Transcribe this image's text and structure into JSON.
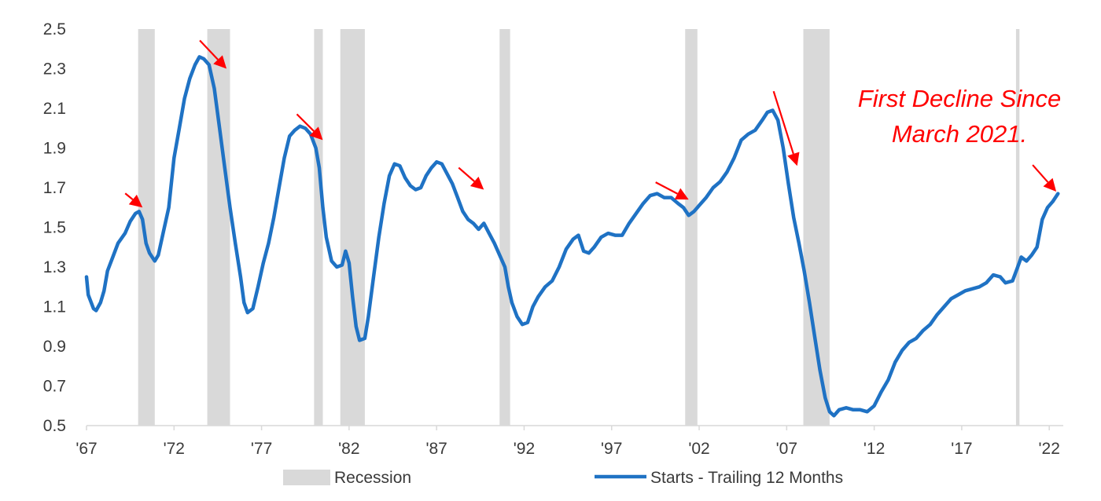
{
  "chart_data": {
    "type": "line",
    "title": "",
    "xlabel": "",
    "ylabel": "",
    "xlim": [
      1967,
      2022.8
    ],
    "ylim": [
      0.5,
      2.5
    ],
    "grid": false,
    "legend_position": "bottom",
    "x_tick_values": [
      1967,
      1972,
      1977,
      1982,
      1987,
      1992,
      1997,
      2002,
      2007,
      2012,
      2017,
      2022
    ],
    "x_tick_labels": [
      "'67",
      "'72",
      "'77",
      "'82",
      "'87",
      "'92",
      "'97",
      "'02",
      "'07",
      "'12",
      "'17",
      "'22"
    ],
    "y_tick_values": [
      0.5,
      0.7,
      0.9,
      1.1,
      1.3,
      1.5,
      1.7,
      1.9,
      2.1,
      2.3,
      2.5
    ],
    "y_tick_labels": [
      "0.5",
      "0.7",
      "0.9",
      "1.1",
      "1.3",
      "1.5",
      "1.7",
      "1.9",
      "2.1",
      "2.3",
      "2.5"
    ],
    "recessions": [
      {
        "start": 1969.95,
        "end": 1970.9
      },
      {
        "start": 1973.9,
        "end": 1975.2
      },
      {
        "start": 1980.0,
        "end": 1980.5
      },
      {
        "start": 1981.5,
        "end": 1982.9
      },
      {
        "start": 1990.6,
        "end": 1991.2
      },
      {
        "start": 2001.2,
        "end": 2001.9
      },
      {
        "start": 2007.95,
        "end": 2009.45
      },
      {
        "start": 2020.1,
        "end": 2020.3
      }
    ],
    "series": [
      {
        "name": "Starts - Trailing 12 Months",
        "color": "#1f72c4",
        "points": [
          [
            1967.0,
            1.25
          ],
          [
            1967.1,
            1.16
          ],
          [
            1967.4,
            1.09
          ],
          [
            1967.55,
            1.08
          ],
          [
            1967.8,
            1.12
          ],
          [
            1968.0,
            1.18
          ],
          [
            1968.2,
            1.28
          ],
          [
            1968.5,
            1.35
          ],
          [
            1968.8,
            1.42
          ],
          [
            1969.2,
            1.47
          ],
          [
            1969.5,
            1.53
          ],
          [
            1969.8,
            1.57
          ],
          [
            1970.0,
            1.58
          ],
          [
            1970.2,
            1.54
          ],
          [
            1970.4,
            1.42
          ],
          [
            1970.6,
            1.37
          ],
          [
            1970.9,
            1.33
          ],
          [
            1971.1,
            1.36
          ],
          [
            1971.4,
            1.48
          ],
          [
            1971.7,
            1.6
          ],
          [
            1972.0,
            1.85
          ],
          [
            1972.3,
            2.0
          ],
          [
            1972.6,
            2.15
          ],
          [
            1972.9,
            2.25
          ],
          [
            1973.2,
            2.32
          ],
          [
            1973.45,
            2.36
          ],
          [
            1973.7,
            2.35
          ],
          [
            1974.0,
            2.32
          ],
          [
            1974.3,
            2.2
          ],
          [
            1974.6,
            2.0
          ],
          [
            1974.9,
            1.8
          ],
          [
            1975.2,
            1.6
          ],
          [
            1975.5,
            1.42
          ],
          [
            1975.8,
            1.25
          ],
          [
            1976.0,
            1.12
          ],
          [
            1976.2,
            1.07
          ],
          [
            1976.5,
            1.09
          ],
          [
            1976.8,
            1.2
          ],
          [
            1977.1,
            1.32
          ],
          [
            1977.4,
            1.42
          ],
          [
            1977.7,
            1.55
          ],
          [
            1978.0,
            1.7
          ],
          [
            1978.3,
            1.85
          ],
          [
            1978.6,
            1.96
          ],
          [
            1978.9,
            1.99
          ],
          [
            1979.2,
            2.01
          ],
          [
            1979.5,
            2.0
          ],
          [
            1979.8,
            1.97
          ],
          [
            1980.1,
            1.9
          ],
          [
            1980.3,
            1.8
          ],
          [
            1980.5,
            1.6
          ],
          [
            1980.7,
            1.45
          ],
          [
            1981.0,
            1.33
          ],
          [
            1981.3,
            1.3
          ],
          [
            1981.6,
            1.31
          ],
          [
            1981.8,
            1.38
          ],
          [
            1982.0,
            1.32
          ],
          [
            1982.2,
            1.15
          ],
          [
            1982.4,
            1.0
          ],
          [
            1982.6,
            0.93
          ],
          [
            1982.9,
            0.94
          ],
          [
            1983.1,
            1.05
          ],
          [
            1983.4,
            1.25
          ],
          [
            1983.7,
            1.45
          ],
          [
            1984.0,
            1.62
          ],
          [
            1984.3,
            1.76
          ],
          [
            1984.6,
            1.82
          ],
          [
            1984.9,
            1.81
          ],
          [
            1985.2,
            1.75
          ],
          [
            1985.5,
            1.71
          ],
          [
            1985.8,
            1.69
          ],
          [
            1986.1,
            1.7
          ],
          [
            1986.4,
            1.76
          ],
          [
            1986.7,
            1.8
          ],
          [
            1987.0,
            1.83
          ],
          [
            1987.3,
            1.82
          ],
          [
            1987.6,
            1.77
          ],
          [
            1987.9,
            1.72
          ],
          [
            1988.2,
            1.65
          ],
          [
            1988.5,
            1.58
          ],
          [
            1988.8,
            1.54
          ],
          [
            1989.1,
            1.52
          ],
          [
            1989.4,
            1.49
          ],
          [
            1989.7,
            1.52
          ],
          [
            1990.0,
            1.47
          ],
          [
            1990.3,
            1.42
          ],
          [
            1990.6,
            1.36
          ],
          [
            1990.9,
            1.3
          ],
          [
            1991.1,
            1.2
          ],
          [
            1991.3,
            1.12
          ],
          [
            1991.6,
            1.05
          ],
          [
            1991.9,
            1.01
          ],
          [
            1992.2,
            1.02
          ],
          [
            1992.5,
            1.1
          ],
          [
            1992.8,
            1.15
          ],
          [
            1993.2,
            1.2
          ],
          [
            1993.6,
            1.23
          ],
          [
            1994.0,
            1.3
          ],
          [
            1994.4,
            1.39
          ],
          [
            1994.8,
            1.44
          ],
          [
            1995.1,
            1.46
          ],
          [
            1995.4,
            1.38
          ],
          [
            1995.7,
            1.37
          ],
          [
            1996.0,
            1.4
          ],
          [
            1996.4,
            1.45
          ],
          [
            1996.8,
            1.47
          ],
          [
            1997.2,
            1.46
          ],
          [
            1997.6,
            1.46
          ],
          [
            1998.0,
            1.52
          ],
          [
            1998.4,
            1.57
          ],
          [
            1998.8,
            1.62
          ],
          [
            1999.2,
            1.66
          ],
          [
            1999.6,
            1.67
          ],
          [
            2000.0,
            1.65
          ],
          [
            2000.4,
            1.65
          ],
          [
            2000.8,
            1.62
          ],
          [
            2001.1,
            1.6
          ],
          [
            2001.4,
            1.56
          ],
          [
            2001.7,
            1.58
          ],
          [
            2002.0,
            1.61
          ],
          [
            2002.4,
            1.65
          ],
          [
            2002.8,
            1.7
          ],
          [
            2003.2,
            1.73
          ],
          [
            2003.6,
            1.78
          ],
          [
            2004.0,
            1.85
          ],
          [
            2004.4,
            1.94
          ],
          [
            2004.8,
            1.97
          ],
          [
            2005.2,
            1.99
          ],
          [
            2005.6,
            2.04
          ],
          [
            2005.9,
            2.08
          ],
          [
            2006.2,
            2.09
          ],
          [
            2006.5,
            2.04
          ],
          [
            2006.8,
            1.9
          ],
          [
            2007.1,
            1.72
          ],
          [
            2007.4,
            1.55
          ],
          [
            2007.7,
            1.42
          ],
          [
            2008.0,
            1.28
          ],
          [
            2008.3,
            1.12
          ],
          [
            2008.6,
            0.95
          ],
          [
            2008.9,
            0.78
          ],
          [
            2009.2,
            0.64
          ],
          [
            2009.45,
            0.57
          ],
          [
            2009.7,
            0.55
          ],
          [
            2010.0,
            0.58
          ],
          [
            2010.4,
            0.59
          ],
          [
            2010.8,
            0.58
          ],
          [
            2011.2,
            0.58
          ],
          [
            2011.6,
            0.57
          ],
          [
            2012.0,
            0.6
          ],
          [
            2012.4,
            0.67
          ],
          [
            2012.8,
            0.73
          ],
          [
            2013.2,
            0.82
          ],
          [
            2013.6,
            0.88
          ],
          [
            2014.0,
            0.92
          ],
          [
            2014.4,
            0.94
          ],
          [
            2014.8,
            0.98
          ],
          [
            2015.2,
            1.01
          ],
          [
            2015.6,
            1.06
          ],
          [
            2016.0,
            1.1
          ],
          [
            2016.4,
            1.14
          ],
          [
            2016.8,
            1.16
          ],
          [
            2017.2,
            1.18
          ],
          [
            2017.6,
            1.19
          ],
          [
            2018.0,
            1.2
          ],
          [
            2018.4,
            1.22
          ],
          [
            2018.8,
            1.26
          ],
          [
            2019.2,
            1.25
          ],
          [
            2019.5,
            1.22
          ],
          [
            2019.9,
            1.23
          ],
          [
            2020.2,
            1.3
          ],
          [
            2020.4,
            1.35
          ],
          [
            2020.7,
            1.33
          ],
          [
            2021.0,
            1.36
          ],
          [
            2021.3,
            1.4
          ],
          [
            2021.6,
            1.54
          ],
          [
            2021.9,
            1.6
          ],
          [
            2022.2,
            1.63
          ],
          [
            2022.5,
            1.67
          ]
        ]
      }
    ],
    "legend": [
      {
        "label": "Recession",
        "color": "#d9d9d9"
      },
      {
        "label": "Starts - Trailing 12 Months",
        "color": "#1f72c4"
      }
    ],
    "annotations": [
      {
        "text_lines": [
          "First Decline Since",
          "March 2021."
        ],
        "color": "#ff0000"
      }
    ],
    "arrows": [
      {
        "color": "#ff0000",
        "target_x": 1970.2,
        "target_y": 1.6
      },
      {
        "color": "#ff0000",
        "target_x": 1975.0,
        "target_y": 2.3
      },
      {
        "color": "#ff0000",
        "target_x": 1980.5,
        "target_y": 1.94
      },
      {
        "color": "#ff0000",
        "target_x": 1989.7,
        "target_y": 1.69
      },
      {
        "color": "#ff0000",
        "target_x": 2001.4,
        "target_y": 1.64
      },
      {
        "color": "#ff0000",
        "target_x": 2007.6,
        "target_y": 1.81
      },
      {
        "color": "#ff0000",
        "target_x": 2022.4,
        "target_y": 1.68
      }
    ]
  }
}
